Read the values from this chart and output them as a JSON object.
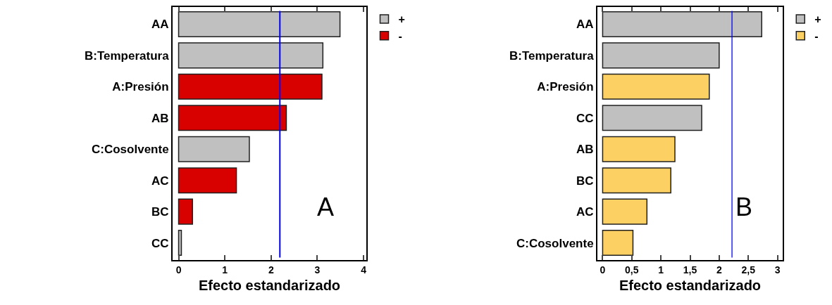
{
  "chart_data": [
    {
      "type": "bar",
      "orientation": "horizontal",
      "categories": [
        "AA",
        "B:Temperatura",
        "A:Presión",
        "AB",
        "C:Cosolvente",
        "AC",
        "BC",
        "CC"
      ],
      "series": [
        {
          "name": "+",
          "color": "#c0c0c0",
          "values": [
            3.49,
            3.12,
            null,
            null,
            1.53,
            null,
            null,
            0.06
          ]
        },
        {
          "name": "-",
          "color": "#d90000",
          "values": [
            null,
            null,
            3.1,
            2.33,
            null,
            1.25,
            0.3,
            null
          ]
        }
      ],
      "xlim": [
        -0.13,
        4.06
      ],
      "xticks": [
        0,
        1,
        2,
        3,
        4
      ],
      "xlabel": "Efecto estandarizado",
      "ref_lines": [
        {
          "axis": "x",
          "value": 2.19,
          "color": "#0000ff"
        }
      ],
      "annotations": [
        "A"
      ],
      "legend": "top right",
      "grid": false
    },
    {
      "type": "bar",
      "orientation": "horizontal",
      "categories": [
        "AA",
        "B:Temperatura",
        "A:Presión",
        "CC",
        "AB",
        "BC",
        "AC",
        "C:Cosolvente"
      ],
      "series": [
        {
          "name": "+",
          "color": "#c0c0c0",
          "values": [
            2.73,
            2.0,
            null,
            1.7,
            null,
            null,
            null,
            null
          ]
        },
        {
          "name": "-",
          "color": "#fdd063",
          "values": [
            null,
            null,
            1.83,
            null,
            1.24,
            1.17,
            0.76,
            0.52
          ]
        }
      ],
      "xlim": [
        -0.09,
        3.09
      ],
      "xticks": [
        0,
        {
          "value": 0.5,
          "label": "0,5"
        },
        1,
        {
          "value": 1.5,
          "label": "1,5"
        },
        2,
        {
          "value": 2.5,
          "label": "2,5"
        },
        3
      ],
      "xlabel": "Efecto estandarizado",
      "ref_lines": [
        {
          "axis": "x",
          "value": 2.22,
          "color": "#0000ff"
        }
      ],
      "annotations": [
        "B"
      ],
      "legend": "top right",
      "grid": false
    }
  ]
}
